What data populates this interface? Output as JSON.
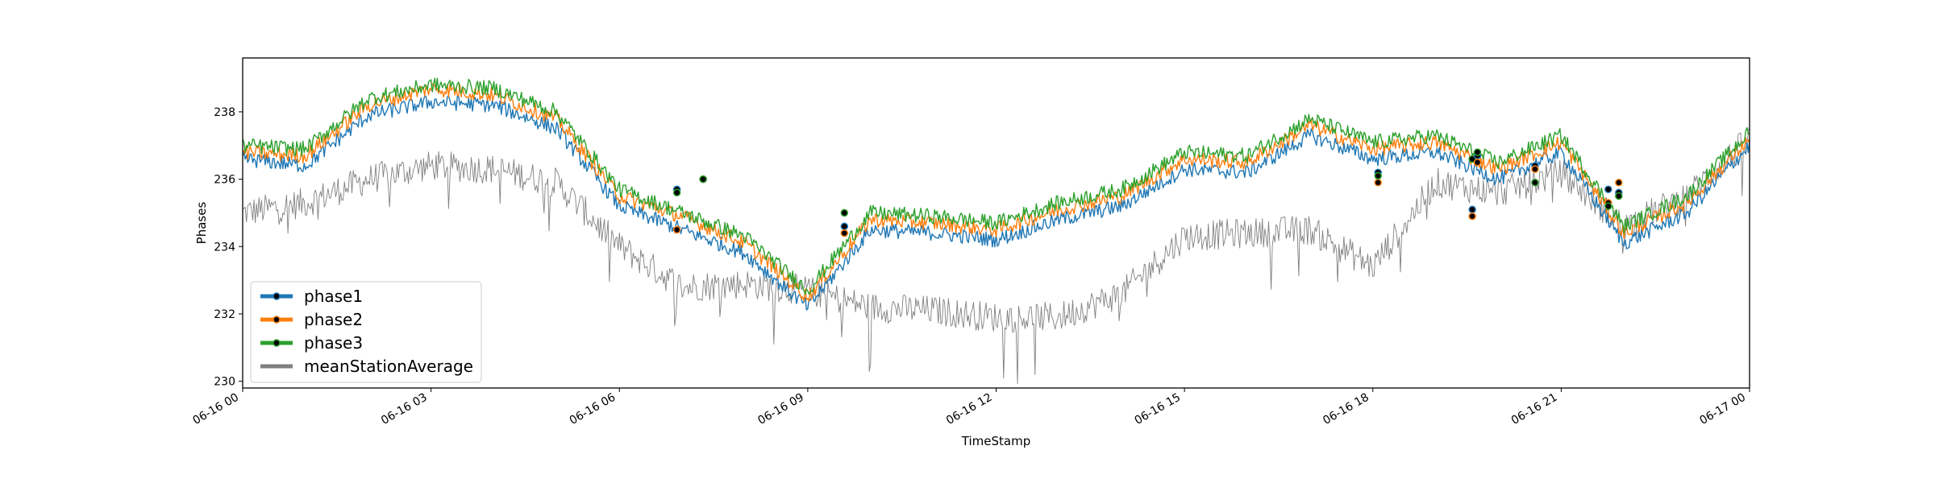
{
  "chart_data": {
    "type": "line",
    "title": "",
    "xlabel": "TimeStamp",
    "ylabel": "Phases",
    "xlim": [
      "2019-06-16 00:00",
      "2019-06-17 00:00"
    ],
    "ylim": [
      229.8,
      239.6
    ],
    "x_ticks": [
      "06-16 00",
      "06-16 03",
      "06-16 06",
      "06-16 09",
      "06-16 12",
      "06-16 15",
      "06-16 18",
      "06-16 21",
      "06-17 00"
    ],
    "y_ticks": [
      "230",
      "232",
      "234",
      "236",
      "238"
    ],
    "legend": {
      "position": "lower-left",
      "entries": [
        "phase1",
        "phase2",
        "phase3",
        "meanStationAverage"
      ]
    },
    "colors": {
      "phase1": "#1f77b4",
      "phase2": "#ff7f0e",
      "phase3": "#2ca02c",
      "meanStationAverage": "#808080"
    },
    "x": [
      "00:00",
      "01:00",
      "02:00",
      "03:00",
      "04:00",
      "05:00",
      "06:00",
      "07:00",
      "08:00",
      "09:00",
      "10:00",
      "11:00",
      "12:00",
      "13:00",
      "14:00",
      "15:00",
      "16:00",
      "17:00",
      "18:00",
      "19:00",
      "20:00",
      "21:00",
      "22:00",
      "23:00",
      "24:00"
    ],
    "series": [
      {
        "name": "phase1",
        "values": [
          236.6,
          236.4,
          237.9,
          238.3,
          238.2,
          237.5,
          235.2,
          234.5,
          233.8,
          232.2,
          234.5,
          234.4,
          234.2,
          234.8,
          235.2,
          236.3,
          236.2,
          237.3,
          236.6,
          236.8,
          236.0,
          236.8,
          234.1,
          235.0,
          237.0
        ]
      },
      {
        "name": "phase2",
        "values": [
          236.8,
          236.7,
          238.2,
          238.7,
          238.5,
          237.8,
          235.5,
          234.9,
          234.1,
          232.5,
          234.8,
          234.7,
          234.5,
          235.1,
          235.5,
          236.6,
          236.5,
          237.6,
          236.9,
          237.1,
          236.3,
          237.1,
          234.4,
          235.3,
          237.2
        ]
      },
      {
        "name": "phase3",
        "values": [
          237.0,
          236.9,
          238.4,
          238.8,
          238.7,
          238.0,
          235.7,
          235.0,
          234.3,
          232.7,
          235.0,
          234.9,
          234.7,
          235.3,
          235.7,
          236.8,
          236.7,
          237.8,
          237.1,
          237.3,
          236.5,
          237.3,
          234.6,
          235.5,
          237.4
        ]
      },
      {
        "name": "meanStationAverage",
        "values": [
          235.0,
          235.3,
          236.0,
          236.4,
          236.3,
          235.9,
          234.0,
          232.8,
          232.9,
          232.7,
          232.2,
          232.1,
          231.9,
          231.9,
          232.6,
          234.3,
          234.4,
          234.5,
          233.4,
          235.9,
          235.6,
          236.2,
          234.6,
          235.5,
          237.2
        ]
      }
    ],
    "events": [
      {
        "x": "06:55",
        "values": [
          235.7,
          234.5,
          235.6
        ]
      },
      {
        "x": "07:20",
        "values": [
          236.0,
          236.0,
          236.0
        ]
      },
      {
        "x": "09:35",
        "values": [
          234.6,
          234.4,
          235.0
        ]
      },
      {
        "x": "18:05",
        "values": [
          236.2,
          235.9,
          236.1
        ]
      },
      {
        "x": "19:35",
        "values": [
          235.1,
          234.9,
          236.6
        ]
      },
      {
        "x": "19:40",
        "values": [
          236.7,
          236.5,
          236.8
        ]
      },
      {
        "x": "20:35",
        "values": [
          236.4,
          236.3,
          235.9
        ]
      },
      {
        "x": "21:45",
        "values": [
          235.7,
          235.3,
          235.2
        ]
      },
      {
        "x": "21:55",
        "values": [
          235.6,
          235.9,
          235.5
        ]
      }
    ],
    "grid": false
  }
}
